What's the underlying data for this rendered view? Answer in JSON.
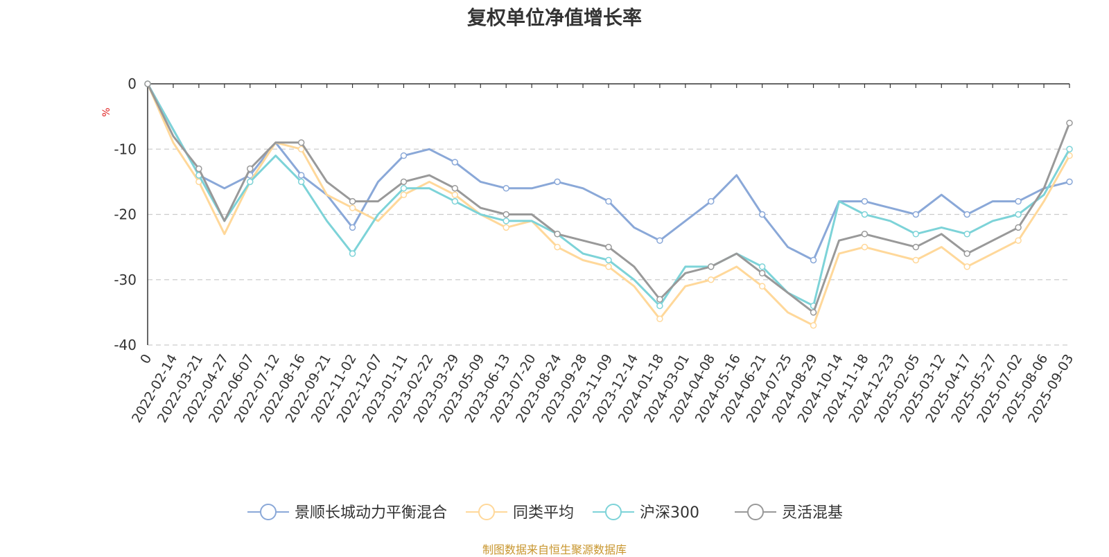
{
  "title": "复权单位净值增长率",
  "source_note": "制图数据来自恒生聚源数据库",
  "chart_data": {
    "type": "line",
    "title": "复权单位净值增长率",
    "ylabel": "%",
    "ylim": [
      -40,
      0
    ],
    "yticks": [
      "0",
      "-10",
      "-20",
      "-30",
      "-40"
    ],
    "grid": true,
    "legend_position": "bottom",
    "categories": [
      "0",
      "2022-02-14",
      "2022-03-21",
      "2022-04-27",
      "2022-06-07",
      "2022-07-12",
      "2022-08-16",
      "2022-09-21",
      "2022-11-02",
      "2022-12-07",
      "2023-01-11",
      "2023-02-22",
      "2023-03-29",
      "2023-05-09",
      "2023-06-13",
      "2023-07-20",
      "2023-08-24",
      "2023-09-28",
      "2023-11-09",
      "2023-12-14",
      "2024-01-18",
      "2024-03-01",
      "2024-04-08",
      "2024-05-16",
      "2024-06-21",
      "2024-07-25",
      "2024-08-29",
      "2024-10-14",
      "2024-11-18",
      "2024-12-23",
      "2025-02-05",
      "2025-03-12",
      "2025-04-17",
      "2025-05-27",
      "2025-07-02",
      "2025-08-06",
      "2025-09-03"
    ],
    "series": [
      {
        "name": "景顺长城动力平衡混合",
        "color": "#8aa8d8",
        "values": [
          0,
          -7,
          -14,
          -16,
          -14,
          -9,
          -14,
          -17,
          -22,
          -15,
          -11,
          -10,
          -12,
          -15,
          -16,
          -16,
          -15,
          -16,
          -18,
          -22,
          -24,
          -21,
          -18,
          -14,
          -20,
          -25,
          -27,
          -18,
          -18,
          -19,
          -20,
          -17,
          -20,
          -18,
          -18,
          -16,
          -15
        ]
      },
      {
        "name": "同类平均",
        "color": "#ffd89a",
        "values": [
          0,
          -9,
          -15,
          -23,
          -15,
          -9,
          -10,
          -17,
          -19,
          -21,
          -17,
          -15,
          -17,
          -20,
          -22,
          -21,
          -25,
          -27,
          -28,
          -31,
          -36,
          -31,
          -30,
          -28,
          -31,
          -35,
          -37,
          -26,
          -25,
          -26,
          -27,
          -25,
          -28,
          -26,
          -24,
          -18,
          -11
        ]
      },
      {
        "name": "沪深300",
        "color": "#7dd3d8",
        "values": [
          0,
          -7,
          -14,
          -21,
          -15,
          -11,
          -15,
          -21,
          -26,
          -20,
          -16,
          -16,
          -18,
          -20,
          -21,
          -21,
          -23,
          -26,
          -27,
          -30,
          -34,
          -28,
          -28,
          -26,
          -28,
          -32,
          -34,
          -18,
          -20,
          -21,
          -23,
          -22,
          -23,
          -21,
          -20,
          -17,
          -10
        ]
      },
      {
        "name": "灵活混基",
        "color": "#999999",
        "values": [
          0,
          -8,
          -13,
          -21,
          -13,
          -9,
          -9,
          -15,
          -18,
          -18,
          -15,
          -14,
          -16,
          -19,
          -20,
          -20,
          -23,
          -24,
          -25,
          -28,
          -33,
          -29,
          -28,
          -26,
          -29,
          -32,
          -35,
          -24,
          -23,
          -24,
          -25,
          -23,
          -26,
          -24,
          -22,
          -16,
          -6
        ]
      }
    ]
  }
}
